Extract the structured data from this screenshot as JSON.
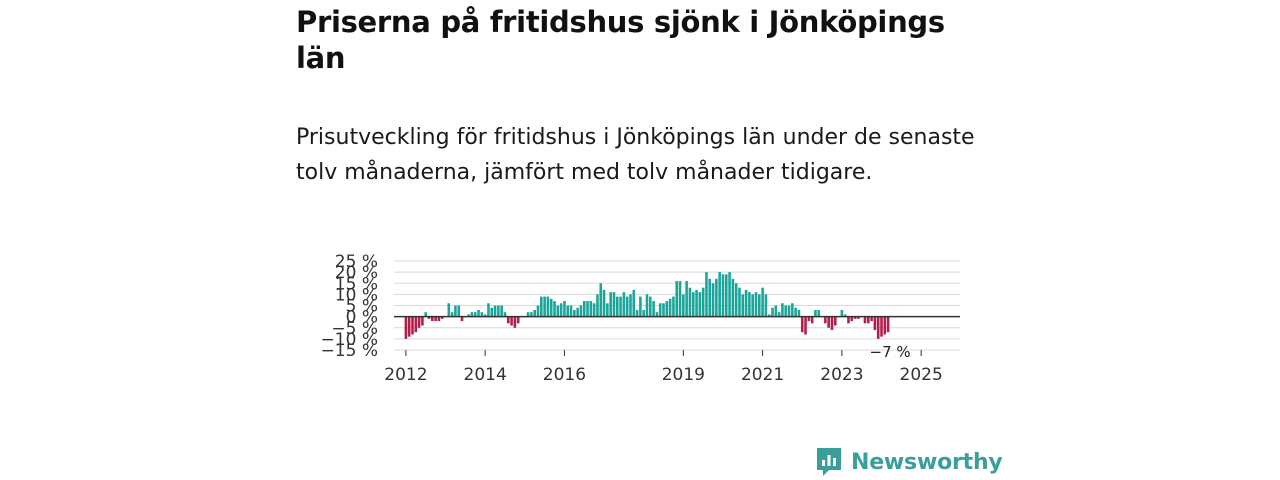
{
  "title": "Priserna på fritidshus sjönk i Jönköpings län",
  "subtitle": "Prisutveckling för fritidshus i Jönköpings län under de senaste tolv månaderna, jämfört med tolv månader tidigare.",
  "brand": "Newsworthy",
  "colors": {
    "positive": "#1aa59a",
    "negative": "#b21d4b",
    "grid": "#d9d9d9",
    "zero": "#333333",
    "brand": "#3a9f9a"
  },
  "chart_data": {
    "type": "bar",
    "title": "",
    "xlabel": "",
    "ylabel": "",
    "x_start": 2012.0,
    "x_step": 0.08333,
    "xlim": [
      2011.7,
      2025.98
    ],
    "ylim": [
      -15,
      25
    ],
    "y_ticks": [
      -15,
      -10,
      -5,
      0,
      5,
      10,
      15,
      20,
      25
    ],
    "y_tick_labels": [
      "−15 %",
      "−10 %",
      "−5 %",
      "0 %",
      "5 %",
      "10 %",
      "15 %",
      "20 %",
      "25 %"
    ],
    "x_ticks": [
      2012,
      2014,
      2016,
      2019,
      2021,
      2023,
      2025
    ],
    "x_tick_labels": [
      "2012",
      "2014",
      "2016",
      "2019",
      "2021",
      "2023",
      "2025"
    ],
    "last_value_label": "−7 %",
    "values": [
      -10,
      -9,
      -8,
      -7,
      -5,
      -4,
      2,
      -1,
      -2,
      -2,
      -2,
      -1,
      0,
      6,
      2,
      5,
      5,
      -2,
      0,
      1,
      2,
      2,
      3,
      2,
      1,
      6,
      4,
      5,
      5,
      5,
      2,
      -3,
      -4,
      -5,
      -3,
      0,
      0,
      2,
      2,
      3,
      5,
      9,
      9,
      9,
      8,
      7,
      5,
      6,
      7,
      5,
      5,
      3,
      4,
      5,
      7,
      7,
      7,
      6,
      10,
      15,
      12,
      6,
      11,
      11,
      9,
      9,
      11,
      9,
      10,
      12,
      3,
      9,
      3,
      10,
      9,
      7,
      2,
      6,
      6,
      7,
      8,
      9,
      16,
      16,
      10,
      16,
      13,
      11,
      12,
      11,
      13,
      20,
      17,
      15,
      17,
      20,
      19,
      19,
      20,
      17,
      15,
      13,
      10,
      12,
      11,
      10,
      11,
      10,
      13,
      10,
      1,
      4,
      5,
      2,
      6,
      5,
      5,
      6,
      4,
      3,
      -7,
      -8,
      -2,
      -3,
      3,
      3,
      0,
      -3,
      -5,
      -6,
      -4,
      0,
      3,
      1,
      -3,
      -2,
      -1,
      -1,
      0,
      -3,
      -3,
      -2,
      -6,
      -10,
      -9,
      -8,
      -7
    ]
  }
}
